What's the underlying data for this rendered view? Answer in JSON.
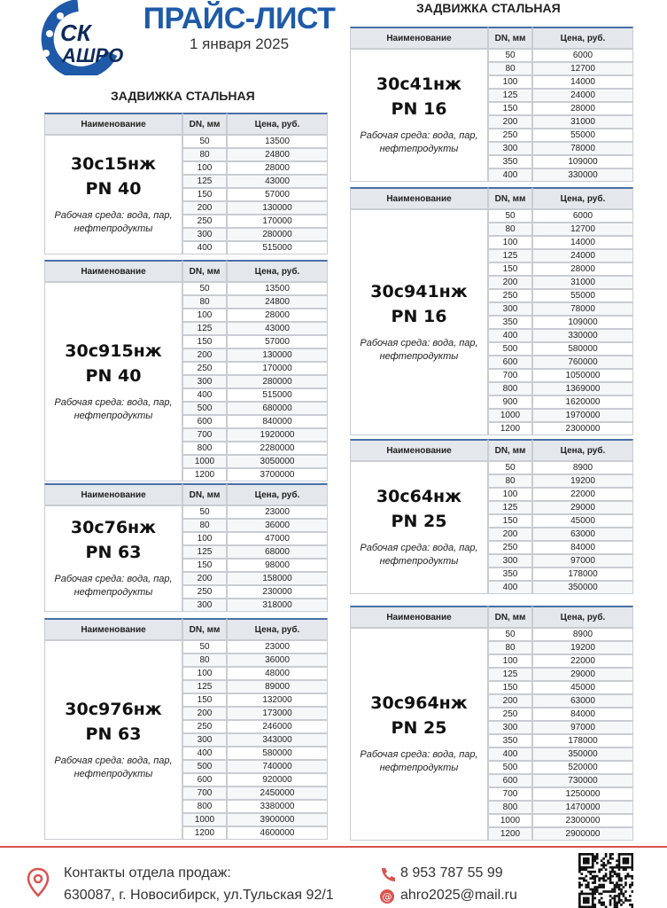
{
  "header": {
    "logo_top": "СК",
    "logo_bottom": "АШРО",
    "title": "ПРАЙС-ЛИСТ",
    "date": "1 января 2025"
  },
  "sections": [
    {
      "heading": "ЗАДВИЖКА СТАЛЬНАЯ",
      "tables": [
        {
          "columns": [
            "Наименование",
            "DN, мм",
            "Цена, руб."
          ],
          "model": "30с15нж",
          "pn": "PN 40",
          "medium": [
            "Рабочая среда: вода, пар,",
            "нефтепродукты"
          ],
          "rows": [
            [
              "50",
              "13500"
            ],
            [
              "80",
              "24800"
            ],
            [
              "100",
              "28000"
            ],
            [
              "125",
              "43000"
            ],
            [
              "150",
              "57000"
            ],
            [
              "200",
              "130000"
            ],
            [
              "250",
              "170000"
            ],
            [
              "300",
              "280000"
            ],
            [
              "400",
              "515000"
            ]
          ]
        },
        {
          "columns": [
            "Наименование",
            "DN, мм",
            "Цена, руб."
          ],
          "model": "30с915нж",
          "pn": "PN 40",
          "medium": [
            "Рабочая среда: вода, пар,",
            "нефтепродукты"
          ],
          "rows": [
            [
              "50",
              "13500"
            ],
            [
              "80",
              "24800"
            ],
            [
              "100",
              "28000"
            ],
            [
              "125",
              "43000"
            ],
            [
              "150",
              "57000"
            ],
            [
              "200",
              "130000"
            ],
            [
              "250",
              "170000"
            ],
            [
              "300",
              "280000"
            ],
            [
              "400",
              "515000"
            ],
            [
              "500",
              "680000"
            ],
            [
              "600",
              "840000"
            ],
            [
              "700",
              "1920000"
            ],
            [
              "800",
              "2280000"
            ],
            [
              "1000",
              "3050000"
            ],
            [
              "1200",
              "3700000"
            ]
          ]
        },
        {
          "columns": [
            "Наименование",
            "DN, мм",
            "Цена, руб."
          ],
          "model": "30с76нж",
          "pn": "PN 63",
          "medium": [
            "Рабочая среда: вода, пар,",
            "нефтепродукты"
          ],
          "rows": [
            [
              "50",
              "23000"
            ],
            [
              "80",
              "36000"
            ],
            [
              "100",
              "47000"
            ],
            [
              "125",
              "68000"
            ],
            [
              "150",
              "98000"
            ],
            [
              "200",
              "158000"
            ],
            [
              "250",
              "230000"
            ],
            [
              "300",
              "318000"
            ]
          ]
        },
        {
          "columns": [
            "Наименование",
            "DN, мм",
            "Цена, руб."
          ],
          "model": "30с976нж",
          "pn": "PN 63",
          "medium": [
            "Рабочая среда: вода, пар,",
            "нефтепродукты"
          ],
          "rows": [
            [
              "50",
              "23000"
            ],
            [
              "80",
              "36000"
            ],
            [
              "100",
              "48000"
            ],
            [
              "125",
              "89000"
            ],
            [
              "150",
              "132000"
            ],
            [
              "200",
              "173000"
            ],
            [
              "250",
              "246000"
            ],
            [
              "300",
              "343000"
            ],
            [
              "400",
              "580000"
            ],
            [
              "500",
              "740000"
            ],
            [
              "600",
              "920000"
            ],
            [
              "700",
              "2450000"
            ],
            [
              "800",
              "3380000"
            ],
            [
              "1000",
              "3900000"
            ],
            [
              "1200",
              "4600000"
            ]
          ]
        }
      ]
    },
    {
      "heading": "ЗАДВИЖКА СТАЛЬНАЯ",
      "tables": [
        {
          "columns": [
            "Наименование",
            "DN, мм",
            "Цена, руб."
          ],
          "model": "30с41нж",
          "pn": "PN 16",
          "medium": [
            "Рабочая среда: вода, пар,",
            "нефтепродукты"
          ],
          "rows": [
            [
              "50",
              "6000"
            ],
            [
              "80",
              "12700"
            ],
            [
              "100",
              "14000"
            ],
            [
              "125",
              "24000"
            ],
            [
              "150",
              "28000"
            ],
            [
              "200",
              "31000"
            ],
            [
              "250",
              "55000"
            ],
            [
              "300",
              "78000"
            ],
            [
              "350",
              "109000"
            ],
            [
              "400",
              "330000"
            ]
          ]
        },
        {
          "columns": [
            "Наименование",
            "DN, мм",
            "Цена, руб."
          ],
          "model": "30с941нж",
          "pn": "PN 16",
          "medium": [
            "Рабочая среда: вода, пар,",
            "нефтепродукты"
          ],
          "rows": [
            [
              "50",
              "6000"
            ],
            [
              "80",
              "12700"
            ],
            [
              "100",
              "14000"
            ],
            [
              "125",
              "24000"
            ],
            [
              "150",
              "28000"
            ],
            [
              "200",
              "31000"
            ],
            [
              "250",
              "55000"
            ],
            [
              "300",
              "78000"
            ],
            [
              "350",
              "109000"
            ],
            [
              "400",
              "330000"
            ],
            [
              "500",
              "580000"
            ],
            [
              "600",
              "760000"
            ],
            [
              "700",
              "1050000"
            ],
            [
              "800",
              "1369000"
            ],
            [
              "900",
              "1620000"
            ],
            [
              "1000",
              "1970000"
            ],
            [
              "1200",
              "2300000"
            ]
          ]
        },
        {
          "columns": [
            "Наименование",
            "DN, мм",
            "Цена, руб."
          ],
          "model": "30с64нж",
          "pn": "PN 25",
          "medium": [
            "Рабочая среда: вода, пар,",
            "нефтепродукты"
          ],
          "rows": [
            [
              "50",
              "8900"
            ],
            [
              "80",
              "19200"
            ],
            [
              "100",
              "22000"
            ],
            [
              "125",
              "29000"
            ],
            [
              "150",
              "45000"
            ],
            [
              "200",
              "63000"
            ],
            [
              "250",
              "84000"
            ],
            [
              "300",
              "97000"
            ],
            [
              "350",
              "178000"
            ],
            [
              "400",
              "350000"
            ]
          ]
        },
        {
          "columns": [
            "Наименование",
            "DN, мм",
            "Цена, руб."
          ],
          "model": "30с964нж",
          "pn": "PN 25",
          "medium": [
            "Рабочая среда: вода, пар,",
            "нефтепродукты"
          ],
          "rows": [
            [
              "50",
              "8900"
            ],
            [
              "80",
              "19200"
            ],
            [
              "100",
              "22000"
            ],
            [
              "125",
              "29000"
            ],
            [
              "150",
              "45000"
            ],
            [
              "200",
              "63000"
            ],
            [
              "250",
              "84000"
            ],
            [
              "300",
              "97000"
            ],
            [
              "350",
              "178000"
            ],
            [
              "400",
              "350000"
            ],
            [
              "500",
              "520000"
            ],
            [
              "600",
              "730000"
            ],
            [
              "700",
              "1250000"
            ],
            [
              "800",
              "1470000"
            ],
            [
              "1000",
              "2300000"
            ],
            [
              "1200",
              "2900000"
            ]
          ]
        }
      ]
    }
  ],
  "footer": {
    "contacts_label": "Контакты отдела продаж:",
    "address": "630087, г. Новосибирск, ул.Тульская 92/1",
    "phone": "8 953 787 55 99",
    "email": "ahro2025@mail.ru"
  }
}
